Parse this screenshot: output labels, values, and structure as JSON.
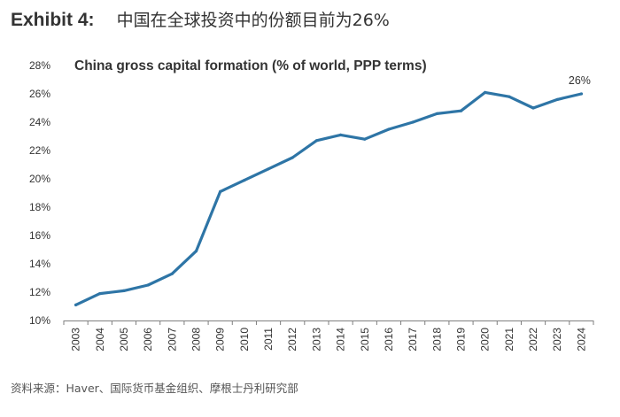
{
  "exhibit": {
    "label": "Exhibit 4:",
    "title": "中国在全球投资中的份额目前为26%"
  },
  "chart_data": {
    "type": "line",
    "title": "China gross capital formation (% of world, PPP terms)",
    "xlabel": "",
    "ylabel": "",
    "x": [
      "2003",
      "2004",
      "2005",
      "2006",
      "2007",
      "2008",
      "2009",
      "2010",
      "2011",
      "2012",
      "2013",
      "2014",
      "2015",
      "2016",
      "2017",
      "2018",
      "2019",
      "2020",
      "2021",
      "2022",
      "2023",
      "2024"
    ],
    "series": [
      {
        "name": "China gross capital formation (% of world, PPP terms)",
        "values": [
          11.1,
          11.9,
          12.1,
          12.5,
          13.3,
          14.9,
          19.1,
          19.9,
          20.7,
          21.5,
          22.7,
          23.1,
          22.8,
          23.5,
          24.0,
          24.6,
          24.8,
          26.1,
          25.8,
          25.0,
          25.6,
          26.0
        ]
      }
    ],
    "y_ticks": [
      "28%",
      "26%",
      "24%",
      "22%",
      "20%",
      "18%",
      "16%",
      "14%",
      "12%",
      "10%"
    ],
    "y_tick_values": [
      28,
      26,
      24,
      22,
      20,
      18,
      16,
      14,
      12,
      10
    ],
    "ylim": [
      10,
      28
    ],
    "grid": false,
    "legend": "none",
    "annotations": [
      {
        "x": "2024",
        "text": "26%"
      }
    ],
    "line_color": "#2e75a6"
  },
  "source": "资料来源：Haver、国际货币基金组织、摩根士丹利研究部"
}
